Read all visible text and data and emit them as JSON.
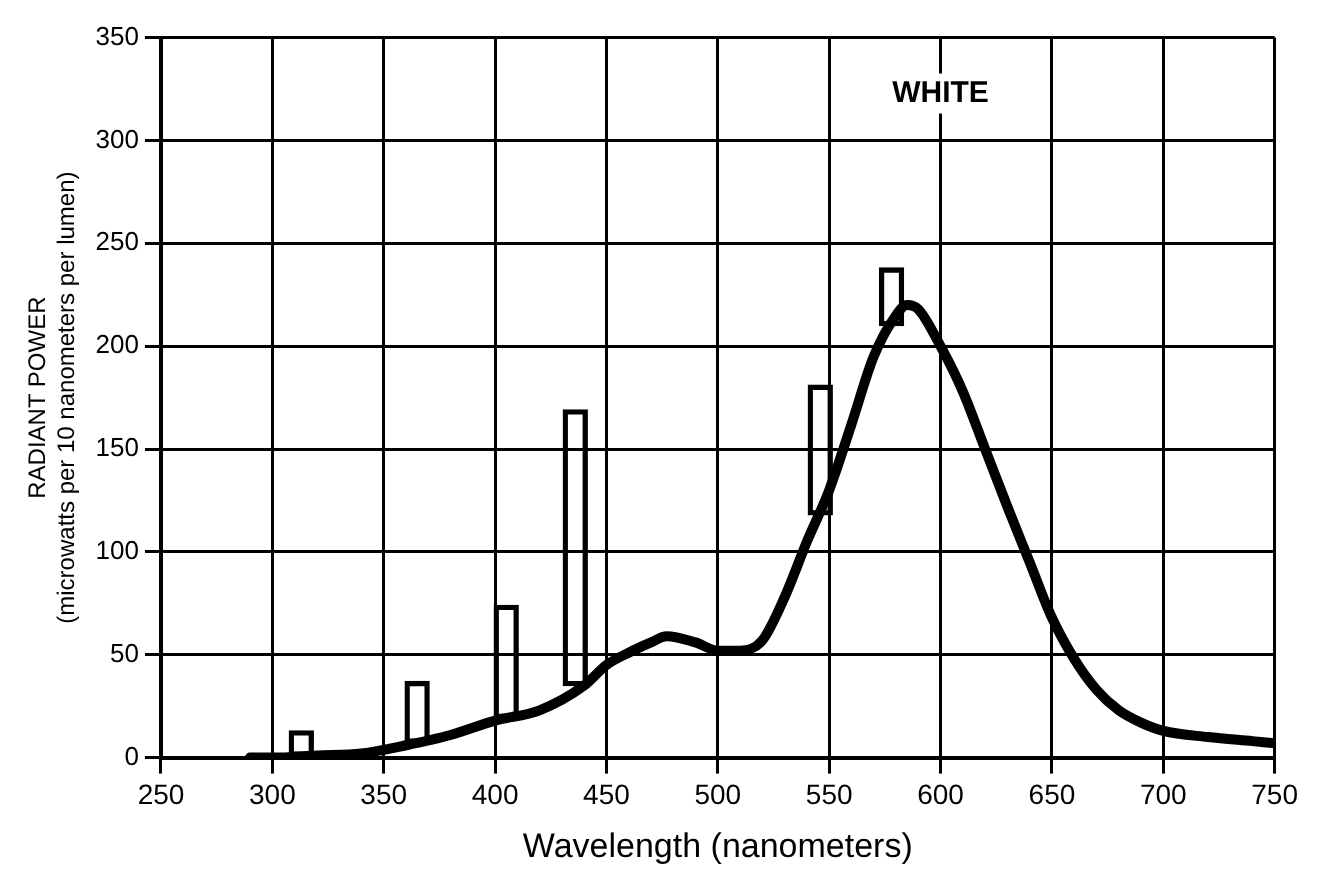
{
  "chart_data": {
    "type": "line",
    "xlabel": "Wavelength (nanometers)",
    "ylabel": "RADIANT POWER\n(microwatts per 10 nanometers per lumen)",
    "annotations": [
      "WHITE"
    ],
    "series": [
      {
        "type": "bar",
        "color": "#000000",
        "x": [
          313,
          365,
          405,
          436,
          546,
          578
        ],
        "base": [
          0,
          7,
          19,
          35,
          118,
          210
        ],
        "values": [
          13,
          30,
          55,
          134,
          63,
          28
        ]
      },
      {
        "color": "#000000",
        "x": [
          290,
          300,
          320,
          340,
          360,
          380,
          400,
          420,
          440,
          450,
          460,
          470,
          477,
          490,
          500,
          510,
          520,
          530,
          540,
          550,
          560,
          570,
          580,
          585,
          590,
          600,
          610,
          620,
          630,
          640,
          650,
          660,
          670,
          680,
          690,
          700,
          720,
          740,
          750
        ],
        "values": [
          0,
          0,
          1,
          2,
          6,
          11,
          18,
          23,
          35,
          45,
          51,
          56,
          59,
          56,
          52,
          52,
          57,
          78,
          105,
          130,
          162,
          195,
          215,
          220,
          218,
          200,
          178,
          150,
          122,
          95,
          68,
          48,
          33,
          23,
          17,
          13,
          10,
          8,
          7
        ]
      }
    ],
    "xlim": [
      250,
      750
    ],
    "xticks": [
      250,
      300,
      350,
      400,
      450,
      500,
      550,
      600,
      650,
      700,
      750
    ],
    "ylim": [
      0,
      350
    ],
    "yticks": [
      0,
      50,
      100,
      150,
      200,
      250,
      300,
      350
    ],
    "grid": true,
    "legend": false
  }
}
